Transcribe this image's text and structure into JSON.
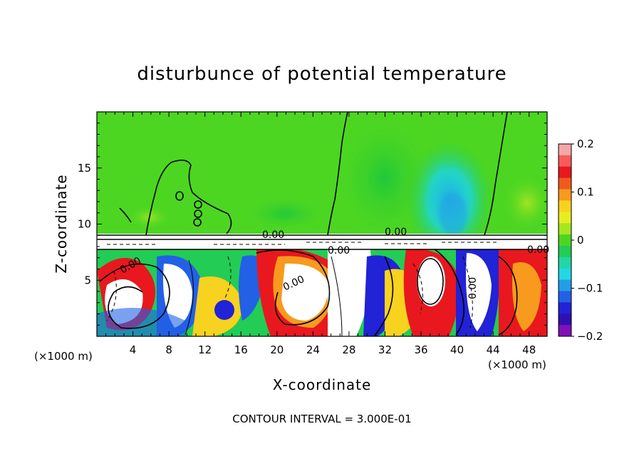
{
  "chart_data": {
    "type": "heatmap",
    "title": "disturbunce of potential temperature",
    "xlabel": "X-coordinate",
    "ylabel": "Z-coordinate",
    "x_unit_left": "(×1000 m)",
    "x_unit_right": "(×1000 m)",
    "xlim": [
      0,
      50
    ],
    "ylim": [
      0,
      20
    ],
    "x_ticks": [
      4,
      8,
      12,
      16,
      20,
      24,
      28,
      32,
      36,
      40,
      44,
      48
    ],
    "y_ticks": [
      5,
      10,
      15
    ],
    "colorbar": {
      "range": [
        -0.2,
        0.2
      ],
      "tick_values": [
        0.2,
        0.1,
        0,
        -0.1,
        -0.2
      ],
      "tick_labels": [
        "0.2",
        "0.1",
        "0",
        "−0.1",
        "−0.2"
      ],
      "colors": [
        "#f7a6a6",
        "#f75a5a",
        "#e8181e",
        "#f05a1c",
        "#f79a1e",
        "#f7d21e",
        "#e6ee20",
        "#a8e622",
        "#4cd622",
        "#22cc55",
        "#22d6a6",
        "#22d6e6",
        "#229ee6",
        "#2260e6",
        "#2222d6",
        "#3010b0",
        "#8010b8"
      ]
    },
    "contour_labels": [
      "0.00",
      "0.00",
      "0.00",
      "0.00",
      "0.00",
      "0.00",
      "0.00"
    ],
    "footer": "CONTOUR INTERVAL = 3.000E-01"
  }
}
